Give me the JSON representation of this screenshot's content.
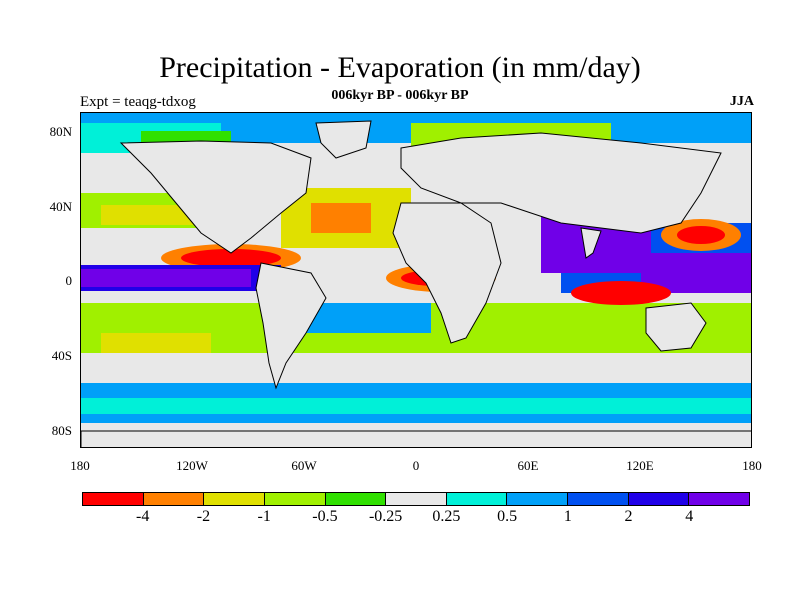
{
  "title": "Precipitation - Evaporation (in mm/day)",
  "subtitle": "006kyr BP - 006kyr BP",
  "left_label": "Expt = teaqg-tdxog",
  "right_label": "JJA",
  "map": {
    "y_ticks": [
      "80N",
      "40N",
      "0",
      "40S",
      "80S"
    ],
    "x_ticks": [
      "180",
      "120W",
      "60W",
      "0",
      "60E",
      "120E",
      "180"
    ],
    "colors": {
      "ocean_neutral": "#e8e8e8",
      "coastline": "#000000"
    }
  },
  "colorbar": {
    "colors": [
      "#ff0000",
      "#ff8000",
      "#e0e000",
      "#a0f000",
      "#30e000",
      "#e8e8e8",
      "#00f0d8",
      "#00a0f8",
      "#0050f0",
      "#2000e8",
      "#7000e8"
    ],
    "labels": [
      "-4",
      "-2",
      "-1",
      "-0.5",
      "-0.25",
      "0.25",
      "0.5",
      "1",
      "2",
      "4"
    ]
  }
}
